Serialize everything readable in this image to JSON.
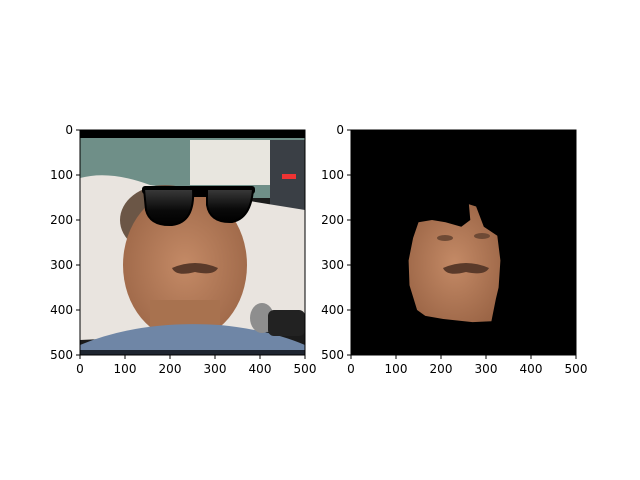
{
  "chart_data": [
    {
      "type": "image",
      "title": "",
      "xlabel": "",
      "ylabel": "",
      "xlim": [
        0,
        500
      ],
      "ylim": [
        500,
        0
      ],
      "xticks": [
        0,
        100,
        200,
        300,
        400,
        500
      ],
      "yticks": [
        0,
        100,
        200,
        300,
        400,
        500
      ],
      "xtick_labels": [
        "0",
        "100",
        "200",
        "300",
        "400",
        "500"
      ],
      "ytick_labels": [
        "0",
        "100",
        "200",
        "300",
        "400",
        "500"
      ],
      "content": "photo-with-sunglasses-overlay"
    },
    {
      "type": "image",
      "title": "",
      "xlabel": "",
      "ylabel": "",
      "xlim": [
        0,
        500
      ],
      "ylim": [
        500,
        0
      ],
      "xticks": [
        0,
        100,
        200,
        300,
        400,
        500
      ],
      "yticks": [
        0,
        100,
        200,
        300,
        400,
        500
      ],
      "xtick_labels": [
        "0",
        "100",
        "200",
        "300",
        "400",
        "500"
      ],
      "ytick_labels": [
        "0",
        "100",
        "200",
        "300",
        "400",
        "500"
      ],
      "content": "face-mask-cutout-on-black",
      "mask_polygon": [
        [
          150,
          205
        ],
        [
          180,
          200
        ],
        [
          210,
          205
        ],
        [
          245,
          215
        ],
        [
          265,
          200
        ],
        [
          262,
          165
        ],
        [
          278,
          170
        ],
        [
          295,
          215
        ],
        [
          325,
          235
        ],
        [
          332,
          290
        ],
        [
          328,
          350
        ],
        [
          322,
          375
        ],
        [
          312,
          425
        ],
        [
          270,
          427
        ],
        [
          205,
          420
        ],
        [
          165,
          413
        ],
        [
          147,
          400
        ],
        [
          130,
          345
        ],
        [
          128,
          290
        ],
        [
          138,
          240
        ],
        [
          150,
          205
        ]
      ]
    }
  ],
  "colors": {
    "background": "#ffffff",
    "black_bg": "#000000",
    "skin": "#b07a57",
    "skin_shadow": "#8a5a3d",
    "mustache": "#5a3a2a",
    "pillow": "#e9e4df",
    "gown": "#6f86a6",
    "wall": "#6f8f88",
    "lens": "#000000"
  }
}
